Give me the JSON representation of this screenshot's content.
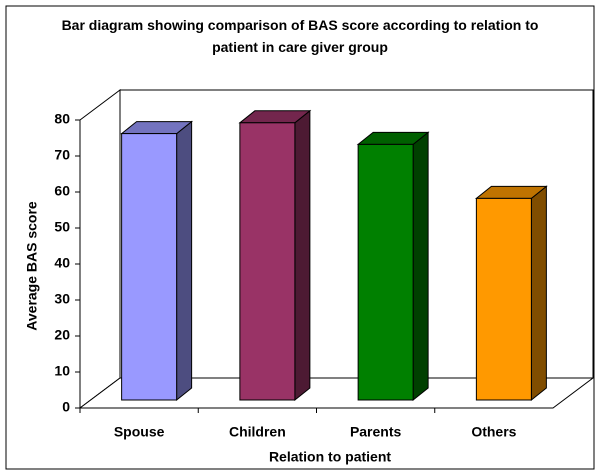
{
  "chart_data": {
    "type": "bar3d",
    "title": "Bar diagram showing comparison of BAS score according to relation to patient in care giver group",
    "categories": [
      "Spouse",
      "Children",
      "Parents",
      "Others"
    ],
    "values": [
      74,
      77,
      71,
      56
    ],
    "colors": [
      "#9999ff",
      "#993366",
      "#008000",
      "#ff9900"
    ],
    "ylim": [
      0,
      80
    ],
    "yticks": [
      0,
      10,
      20,
      30,
      40,
      50,
      60,
      70,
      80
    ],
    "xlabel": "Relation to patient",
    "ylabel": "Average BAS score"
  }
}
